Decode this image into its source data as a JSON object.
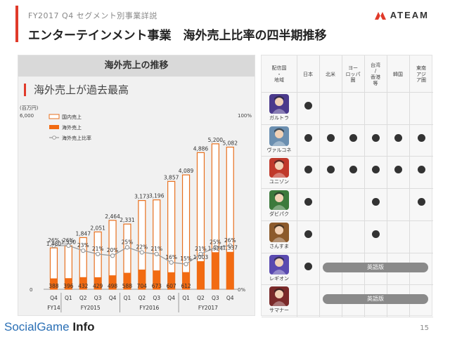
{
  "header": {
    "subtitle": "FY2017 Q4 セグメント別事業詳説",
    "title": "エンターテインメント事業　海外売上比率の四半期推移",
    "brand": "ATEAM"
  },
  "left_panel": {
    "heading": "海外売上の推移",
    "headline": "海外売上が過去最高"
  },
  "chart_data": {
    "type": "bar",
    "title": "",
    "unit_label": "(百万円)",
    "y_left_ticks": [
      "6,000",
      "0"
    ],
    "y_right_ticks": [
      "100%",
      "0%"
    ],
    "ylim": [
      0,
      6000
    ],
    "y2lim": [
      0,
      100
    ],
    "legend": [
      "国内売上",
      "海外売上",
      "海外売上比率"
    ],
    "categories": [
      "Q4",
      "Q1",
      "Q2",
      "Q3",
      "Q4",
      "Q1",
      "Q2",
      "Q3",
      "Q4",
      "Q1",
      "Q2",
      "Q3",
      "Q4"
    ],
    "fiscal_years": [
      {
        "label": "FY14",
        "count": 1
      },
      {
        "label": "FY2015",
        "count": 4
      },
      {
        "label": "FY2016",
        "count": 4
      },
      {
        "label": "FY2017",
        "count": 4
      }
    ],
    "totals": [
      1480,
      1550,
      1847,
      2051,
      2464,
      2331,
      3173,
      3196,
      3857,
      4089,
      4886,
      5200,
      5082
    ],
    "total_labels": [
      "1,480",
      "1,550",
      "1,847",
      "2,051",
      "2,464",
      "2,331",
      "3,173",
      "3,196",
      "3,857",
      "4,089",
      "4,886",
      "5,200",
      "5,082"
    ],
    "overseas": [
      388,
      396,
      432,
      429,
      498,
      588,
      704,
      673,
      607,
      612,
      1003,
      1324,
      1337
    ],
    "overseas_labels": [
      "388",
      "396",
      "432",
      "429",
      "498",
      "588",
      "704",
      "673",
      "607",
      "612",
      "1,003",
      "1,324",
      "1,337"
    ],
    "ratio": [
      26,
      26,
      23,
      21,
      20,
      25,
      22,
      21,
      16,
      15,
      21,
      25,
      26
    ],
    "ratio_labels": [
      "26%",
      "26%",
      "23%",
      "21%",
      "20%",
      "25%",
      "22%",
      "21%",
      "16%",
      "15%",
      "21%",
      "25%",
      "26%"
    ],
    "colors": {
      "domestic_border": "#e8701e",
      "overseas": "#f26b12",
      "ratio_line": "#9a9a9a"
    }
  },
  "table": {
    "col_headers": [
      "配信国\n・\n地域",
      "日本",
      "北米",
      "ヨー\nロッパ\n圏",
      "台湾\n/\n香港\n等",
      "韓国",
      "東南\nアジ\nア圏"
    ],
    "games": [
      {
        "name": "ガルトラ",
        "icon": "game-icon-garutora",
        "color": "#4b3a8c",
        "regions": [
          true,
          false,
          false,
          false,
          false,
          false
        ]
      },
      {
        "name": "ヴァルコネ",
        "icon": "game-icon-valcone",
        "color": "#6b8fb0",
        "regions": [
          true,
          true,
          true,
          true,
          true,
          true
        ]
      },
      {
        "name": "ユニゾン",
        "icon": "game-icon-unison",
        "color": "#c0392b",
        "regions": [
          true,
          true,
          true,
          true,
          true,
          true
        ]
      },
      {
        "name": "ダビパク",
        "icon": "game-icon-dabipaku",
        "color": "#3c7a3c",
        "regions": [
          true,
          false,
          false,
          true,
          false,
          true
        ]
      },
      {
        "name": "さんすま",
        "icon": "game-icon-sansuma",
        "color": "#8c5a2b",
        "regions": [
          true,
          false,
          false,
          true,
          false,
          false
        ]
      },
      {
        "name": "レギオン",
        "icon": "game-icon-legion",
        "color": "#5a4ab0",
        "regions": [
          true,
          false,
          false,
          false,
          false,
          false
        ],
        "pill": "英語版"
      },
      {
        "name": "サマナー",
        "icon": "game-icon-summoner",
        "color": "#7a2a2a",
        "regions": [
          false,
          false,
          false,
          false,
          false,
          false
        ],
        "pill": "英語版"
      }
    ]
  },
  "footer": {
    "logo_part1": "Social",
    "logo_part2": "Game",
    "logo_part3": "Info",
    "page_number": "15"
  }
}
